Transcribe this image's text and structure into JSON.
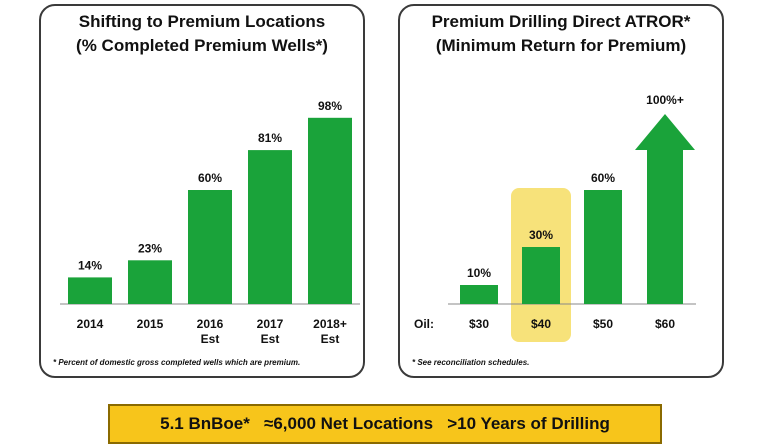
{
  "colors": {
    "bar": "#1aa33a",
    "highlight": "#f7e27a",
    "banner": "#f7c51b"
  },
  "chart_data": [
    {
      "type": "bar",
      "title": "Shifting to Premium Locations",
      "subtitle": "(% Completed Premium Wells*)",
      "categories": [
        [
          "2014"
        ],
        [
          "2015"
        ],
        [
          "2016",
          "Est"
        ],
        [
          "2017",
          "Est"
        ],
        [
          "2018+",
          "Est"
        ]
      ],
      "values": [
        14,
        23,
        60,
        81,
        98
      ],
      "value_labels": [
        "14%",
        "23%",
        "60%",
        "81%",
        "98%"
      ],
      "ylim": [
        0,
        100
      ],
      "grid": false,
      "footnote": "* Percent of domestic gross completed wells which are premium."
    },
    {
      "type": "bar",
      "title": "Premium Drilling Direct ATROR*",
      "subtitle": "(Minimum Return for Premium)",
      "axis_prefix": "Oil:",
      "categories": [
        "$30",
        "$40",
        "$50",
        "$60"
      ],
      "values": [
        10,
        30,
        60,
        100
      ],
      "value_labels": [
        "10%",
        "30%",
        "60%",
        "100%+"
      ],
      "last_bar_is_arrow": true,
      "highlighted_category": "$40",
      "ylim": [
        0,
        100
      ],
      "grid": false,
      "footnote": "* See reconciliation schedules."
    }
  ],
  "banner": {
    "text": "5.1 BnBoe*   ≈6,000 Net Locations   >10 Years of Drilling"
  }
}
